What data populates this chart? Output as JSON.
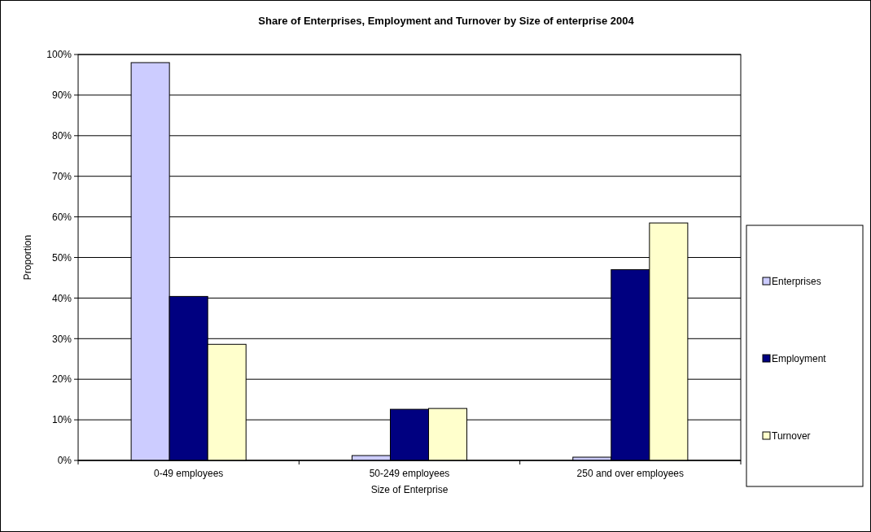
{
  "chart_data": {
    "type": "bar",
    "title": "Share of Enterprises, Employment and Turnover by Size of enterprise 2004",
    "xlabel": "Size of Enterprise",
    "ylabel": "Proportion",
    "categories": [
      "0-49 employees",
      "50-249 employees",
      "250 and over employees"
    ],
    "series": [
      {
        "name": "Enterprises",
        "color": "#ccccff",
        "values": [
          98.0,
          1.2,
          0.8
        ]
      },
      {
        "name": "Employment",
        "color": "#000080",
        "values": [
          40.4,
          12.6,
          47.0
        ]
      },
      {
        "name": "Turnover",
        "color": "#ffffcc",
        "values": [
          28.6,
          12.8,
          58.5
        ]
      }
    ],
    "ylim": [
      0,
      100
    ],
    "yticks": [
      {
        "value": 0,
        "label": "0%"
      },
      {
        "value": 10,
        "label": "10%"
      },
      {
        "value": 20,
        "label": "20%"
      },
      {
        "value": 30,
        "label": "30%"
      },
      {
        "value": 40,
        "label": "40%"
      },
      {
        "value": 50,
        "label": "50%"
      },
      {
        "value": 60,
        "label": "60%"
      },
      {
        "value": 70,
        "label": "70%"
      },
      {
        "value": 80,
        "label": "80%"
      },
      {
        "value": 90,
        "label": "90%"
      },
      {
        "value": 100,
        "label": "100%"
      }
    ],
    "grid": "y",
    "legend": "right"
  }
}
